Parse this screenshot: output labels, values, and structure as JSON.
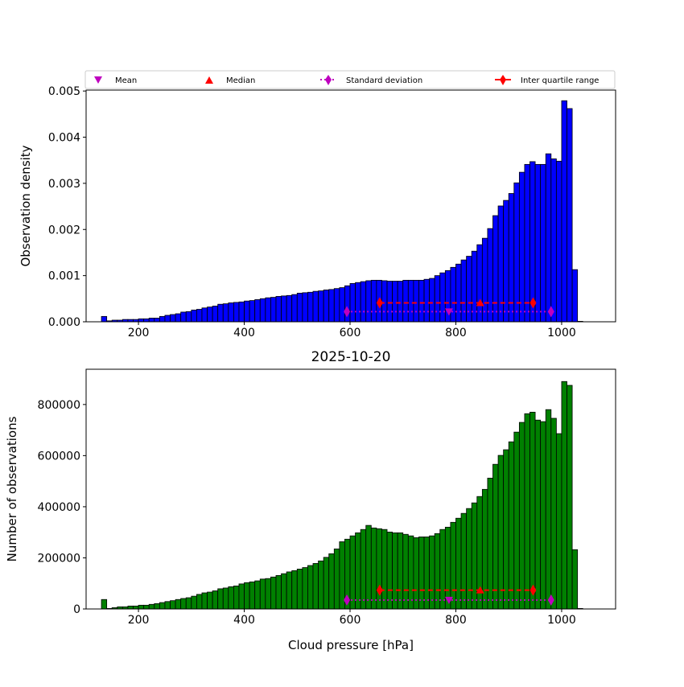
{
  "chart_data": [
    {
      "type": "bar",
      "title": "",
      "xlabel": "",
      "ylabel": "Observation density",
      "xlim": [
        101,
        1102
      ],
      "ylim": [
        0,
        0.00502
      ],
      "bin_width": 10,
      "bar_color": "#0000ff",
      "x_ticks": [
        "200",
        "400",
        "600",
        "800",
        "1000"
      ],
      "x_tick_values": [
        200,
        400,
        600,
        800,
        1000
      ],
      "y_ticks": [
        "0.000",
        "0.001",
        "0.002",
        "0.003",
        "0.004",
        "0.005"
      ],
      "y_tick_values": [
        0,
        0.001,
        0.002,
        0.003,
        0.004,
        0.005
      ],
      "bin_starts": [
        130,
        140,
        150,
        160,
        170,
        180,
        190,
        200,
        210,
        220,
        230,
        240,
        250,
        260,
        270,
        280,
        290,
        300,
        310,
        320,
        330,
        340,
        350,
        360,
        370,
        380,
        390,
        400,
        410,
        420,
        430,
        440,
        450,
        460,
        470,
        480,
        490,
        500,
        510,
        520,
        530,
        540,
        550,
        560,
        570,
        580,
        590,
        600,
        610,
        620,
        630,
        640,
        650,
        660,
        670,
        680,
        690,
        700,
        710,
        720,
        730,
        740,
        750,
        760,
        770,
        780,
        790,
        800,
        810,
        820,
        830,
        840,
        850,
        860,
        870,
        880,
        890,
        900,
        910,
        920,
        930,
        940,
        950,
        960,
        970,
        980,
        990,
        1000,
        1010,
        1020,
        1030
      ],
      "values": [
        0.000116,
        2e-05,
        3.5e-05,
        3.5e-05,
        5e-05,
        5e-05,
        5e-05,
        6.4e-05,
        6.4e-05,
        8e-05,
        8e-05,
        0.000116,
        0.00014,
        0.000157,
        0.000174,
        0.00021,
        0.00022,
        0.000255,
        0.00027,
        0.0003,
        0.00032,
        0.00034,
        0.00038,
        0.00039,
        0.00041,
        0.00042,
        0.00043,
        0.00045,
        0.00046,
        0.00048,
        0.0005,
        0.00052,
        0.00053,
        0.00055,
        0.00056,
        0.00057,
        0.00059,
        0.00062,
        0.00063,
        0.00064,
        0.00066,
        0.00067,
        0.00069,
        0.0007,
        0.00072,
        0.00074,
        0.00078,
        0.00083,
        0.00085,
        0.00087,
        0.00089,
        0.0009,
        0.0009,
        0.00089,
        0.00088,
        0.00088,
        0.00088,
        0.0009,
        0.0009,
        0.0009,
        0.0009,
        0.00092,
        0.00094,
        0.001,
        0.00106,
        0.00111,
        0.00118,
        0.00125,
        0.00134,
        0.00142,
        0.00153,
        0.00167,
        0.00181,
        0.00202,
        0.0023,
        0.00251,
        0.00263,
        0.00278,
        0.00301,
        0.00324,
        0.00341,
        0.00347,
        0.00341,
        0.00341,
        0.00364,
        0.00353,
        0.00348,
        0.00479,
        0.00462,
        0.00113,
        1e-05
      ],
      "stats": {
        "mean": {
          "x": 787,
          "y": 0.00022
        },
        "std_range": {
          "x": [
            594,
            980
          ],
          "y": 0.00022
        },
        "median": {
          "x": 846,
          "y": 0.00041
        },
        "iqr": {
          "x": [
            656,
            946
          ],
          "y": 0.00041
        }
      },
      "legend": {
        "placement": "top, above axes",
        "entries": [
          "Mean",
          "Median",
          "Standard deviation",
          "Inter quartile range"
        ]
      }
    },
    {
      "type": "bar",
      "title": "2025-10-20",
      "xlabel": "Cloud pressure [hPa]",
      "ylabel": "Number of observations",
      "xlim": [
        101,
        1102
      ],
      "ylim": [
        0,
        938000
      ],
      "bin_width": 10,
      "bar_color": "#008000",
      "x_ticks": [
        "200",
        "400",
        "600",
        "800",
        "1000"
      ],
      "x_tick_values": [
        200,
        400,
        600,
        800,
        1000
      ],
      "y_ticks": [
        "0",
        "200000",
        "400000",
        "600000",
        "800000"
      ],
      "y_tick_values": [
        0,
        200000,
        400000,
        600000,
        800000
      ],
      "bin_starts": [
        130,
        140,
        150,
        160,
        170,
        180,
        190,
        200,
        210,
        220,
        230,
        240,
        250,
        260,
        270,
        280,
        290,
        300,
        310,
        320,
        330,
        340,
        350,
        360,
        370,
        380,
        390,
        400,
        410,
        420,
        430,
        440,
        450,
        460,
        470,
        480,
        490,
        500,
        510,
        520,
        530,
        540,
        550,
        560,
        570,
        580,
        590,
        600,
        610,
        620,
        630,
        640,
        650,
        660,
        670,
        680,
        690,
        700,
        710,
        720,
        730,
        740,
        750,
        760,
        770,
        780,
        790,
        800,
        810,
        820,
        830,
        840,
        850,
        860,
        870,
        880,
        890,
        900,
        910,
        920,
        930,
        940,
        950,
        960,
        970,
        980,
        990,
        1000,
        1010,
        1020,
        1030
      ],
      "values": [
        37000,
        2000,
        5000,
        8400,
        8400,
        11500,
        11500,
        14700,
        14700,
        18000,
        21000,
        25000,
        29000,
        32500,
        37000,
        41000,
        44000,
        50000,
        57000,
        63000,
        66000,
        71000,
        79000,
        82000,
        87000,
        90000,
        98000,
        103000,
        106000,
        110000,
        117000,
        119000,
        125000,
        131000,
        138000,
        145000,
        150000,
        156000,
        162000,
        170000,
        178000,
        188000,
        202000,
        216000,
        235000,
        263000,
        273000,
        286000,
        298000,
        311000,
        327000,
        317000,
        314000,
        311000,
        301000,
        298000,
        298000,
        292000,
        286000,
        279000,
        282000,
        282000,
        286000,
        295000,
        311000,
        320000,
        339000,
        355000,
        374000,
        393000,
        415000,
        440000,
        468000,
        512000,
        566000,
        601000,
        623000,
        654000,
        692000,
        730000,
        764000,
        770000,
        739000,
        733000,
        780000,
        746000,
        686000,
        890000,
        875000,
        232000,
        2000
      ],
      "stats": {
        "mean": {
          "x": 787,
          "y": 35000
        },
        "std_range": {
          "x": [
            594,
            980
          ],
          "y": 35000
        },
        "median": {
          "x": 846,
          "y": 73500
        },
        "iqr": {
          "x": [
            656,
            946
          ],
          "y": 73500
        }
      }
    }
  ]
}
